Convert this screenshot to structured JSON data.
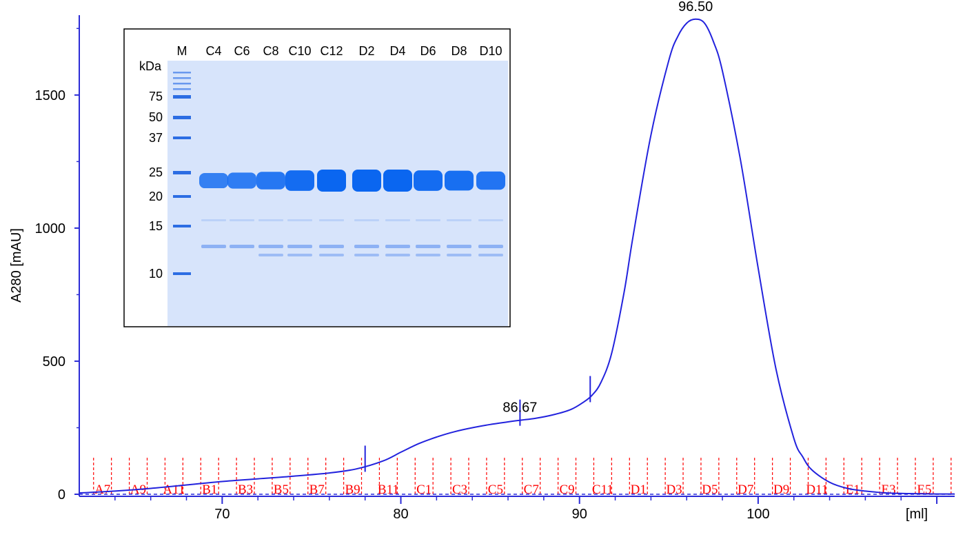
{
  "chart_data": {
    "type": "line",
    "title": "",
    "xlabel": "[ml]",
    "ylabel": "A280 [mAU]",
    "xlim": [
      62,
      111
    ],
    "ylim": [
      0,
      1800
    ],
    "x_ticks": [
      "70",
      "80",
      "90",
      "100"
    ],
    "y_ticks": [
      "0",
      "500",
      "1000",
      "1500"
    ],
    "series": [
      {
        "x": [
          62,
          64,
          66,
          68,
          70,
          72,
          74,
          76,
          77.5,
          79,
          80,
          81,
          82,
          83,
          84,
          85,
          86,
          86.67,
          87.5,
          88.5,
          89.5,
          90.2,
          90.7,
          91.2,
          91.8,
          92.5,
          93,
          94,
          95,
          95.5,
          96,
          96.5,
          97,
          97.5,
          98,
          99,
          100,
          101,
          102,
          102.5,
          103,
          104,
          105,
          106,
          107,
          108,
          109,
          110,
          111
        ],
        "y": [
          5,
          12,
          22,
          35,
          48,
          58,
          68,
          80,
          95,
          125,
          158,
          190,
          215,
          235,
          250,
          262,
          272,
          278,
          285,
          298,
          318,
          345,
          372,
          420,
          530,
          760,
          970,
          1350,
          1630,
          1720,
          1770,
          1785,
          1770,
          1700,
          1590,
          1260,
          850,
          470,
          210,
          140,
          92,
          45,
          22,
          12,
          6,
          3,
          2,
          1,
          1
        ]
      }
    ],
    "peaks": [
      {
        "x": 96.5,
        "y": 1785,
        "label": "96.50"
      },
      {
        "x": 86.67,
        "y": 278,
        "label": "86.67"
      }
    ],
    "markers_x": [
      78,
      86.67,
      90.6
    ],
    "fractions": {
      "boundaries_x": [
        62.8,
        63.8,
        64.8,
        65.8,
        66.8,
        67.8,
        68.8,
        69.8,
        70.8,
        71.8,
        72.8,
        73.8,
        74.8,
        75.8,
        76.8,
        77.8,
        78.8,
        79.8,
        80.8,
        81.8,
        82.8,
        83.8,
        84.8,
        85.8,
        86.8,
        87.8,
        88.8,
        89.8,
        90.8,
        91.8,
        92.8,
        93.8,
        94.8,
        95.8,
        96.8,
        97.8,
        98.8,
        99.8,
        100.8,
        101.8,
        102.8,
        103.8,
        104.8,
        105.8,
        106.8,
        107.8,
        108.8,
        109.8,
        110.8
      ],
      "labels": [
        {
          "text": "A7",
          "x": 63.3
        },
        {
          "text": "A9",
          "x": 65.3
        },
        {
          "text": "A11",
          "x": 67.3
        },
        {
          "text": "B1",
          "x": 69.3
        },
        {
          "text": "B3",
          "x": 71.3
        },
        {
          "text": "B5",
          "x": 73.3
        },
        {
          "text": "B7",
          "x": 75.3
        },
        {
          "text": "B9",
          "x": 77.3
        },
        {
          "text": "B11",
          "x": 79.3
        },
        {
          "text": "C1",
          "x": 81.3
        },
        {
          "text": "C3",
          "x": 83.3
        },
        {
          "text": "C5",
          "x": 85.3
        },
        {
          "text": "C7",
          "x": 87.3
        },
        {
          "text": "C9",
          "x": 89.3
        },
        {
          "text": "C11",
          "x": 91.3
        },
        {
          "text": "D1",
          "x": 93.3
        },
        {
          "text": "D3",
          "x": 95.3
        },
        {
          "text": "D5",
          "x": 97.3
        },
        {
          "text": "D7",
          "x": 99.3
        },
        {
          "text": "D9",
          "x": 101.3
        },
        {
          "text": "D11",
          "x": 103.3
        },
        {
          "text": "E1",
          "x": 105.3
        },
        {
          "text": "E3",
          "x": 107.3
        },
        {
          "text": "E5",
          "x": 109.3
        }
      ]
    },
    "colors": {
      "trace": "#2222dd",
      "axis": "#2b2bd6",
      "fractions": "#ff0000",
      "gel_background": "#d7e4fb",
      "band": "#0a66f0"
    }
  },
  "inset": {
    "unit_label": "kDa",
    "marker_lane_label": "M",
    "lane_labels": [
      "C4",
      "C6",
      "C8",
      "C10",
      "C12",
      "D2",
      "D4",
      "D6",
      "D8",
      "D10"
    ],
    "ladder_kda": [
      "75",
      "50",
      "37",
      "25",
      "20",
      "15",
      "10"
    ],
    "main_band_intensity": [
      0.55,
      0.6,
      0.7,
      0.9,
      1.0,
      1.0,
      1.0,
      0.9,
      0.85,
      0.75
    ]
  }
}
